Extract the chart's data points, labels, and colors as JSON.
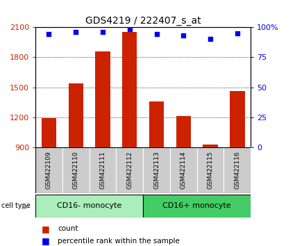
{
  "title": "GDS4219 / 222407_s_at",
  "samples": [
    "GSM422109",
    "GSM422110",
    "GSM422111",
    "GSM422112",
    "GSM422113",
    "GSM422114",
    "GSM422115",
    "GSM422116"
  ],
  "counts": [
    1195,
    1540,
    1860,
    2050,
    1360,
    1215,
    930,
    1460
  ],
  "percentiles": [
    94,
    96,
    96,
    98,
    94,
    93,
    90,
    95
  ],
  "groups": [
    {
      "label": "CD16- monocyte",
      "start": 0,
      "end": 4
    },
    {
      "label": "CD16+ monocyte",
      "start": 4,
      "end": 8
    }
  ],
  "group_colors": [
    "#AAEEBB",
    "#44CC66"
  ],
  "ylim_left": [
    900,
    2100
  ],
  "ylim_right": [
    0,
    100
  ],
  "yticks_left": [
    900,
    1200,
    1500,
    1800,
    2100
  ],
  "yticks_right": [
    0,
    25,
    50,
    75,
    100
  ],
  "bar_color": "#CC2200",
  "dot_color": "#0000EE",
  "title_fontsize": 10,
  "axis_label_color_left": "#CC2200",
  "axis_label_color_right": "#0000EE",
  "bar_width": 0.55,
  "legend_count_label": "count",
  "legend_pct_label": "percentile rank within the sample",
  "sample_box_color": "#CCCCCC",
  "grid_dotted_ticks": [
    1200,
    1500,
    1800
  ]
}
